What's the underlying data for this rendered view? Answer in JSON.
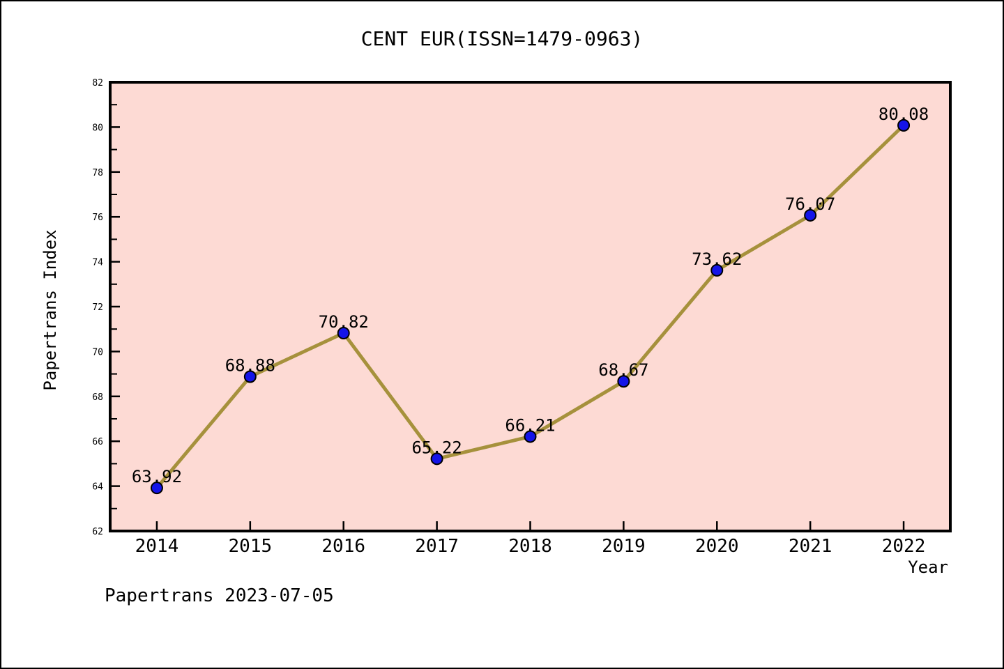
{
  "title": "CENT EUR(ISSN=1479-0963)",
  "footer": "Papertrans 2023-07-05",
  "chart_data": {
    "type": "line",
    "title": "CENT EUR(ISSN=1479-0963)",
    "xlabel": "Year",
    "ylabel": "Papertrans Index",
    "x": [
      2014,
      2015,
      2016,
      2017,
      2018,
      2019,
      2020,
      2021,
      2022
    ],
    "series": [
      {
        "name": "Papertrans Index",
        "values": [
          63.92,
          68.88,
          70.82,
          65.22,
          66.21,
          68.67,
          73.62,
          76.07,
          80.08
        ],
        "point_labels": [
          "63.92",
          "68.88",
          "70.82",
          "65.22",
          "66.21",
          "68.67",
          "73.62",
          "76.07",
          "80.08"
        ]
      }
    ],
    "xlim": [
      2013.5,
      2022.5
    ],
    "ylim": [
      62,
      82
    ],
    "ytick_major_step": 2,
    "ytick_minor_step": 1,
    "ytick_labels": [
      "62",
      "64",
      "66",
      "68",
      "70",
      "72",
      "74",
      "76",
      "78",
      "80",
      "82"
    ],
    "xtick_labels": [
      "2014",
      "2015",
      "2016",
      "2017",
      "2018",
      "2019",
      "2020",
      "2021",
      "2022"
    ],
    "grid": false,
    "legend": null,
    "colors": {
      "line": "#A6913C",
      "marker_fill": "#1414E8",
      "marker_edge": "#000000",
      "plot_background": "#FDDAD4",
      "plot_border": "#000000",
      "text": "#000000",
      "figure_background": "#FFFFFF"
    }
  }
}
